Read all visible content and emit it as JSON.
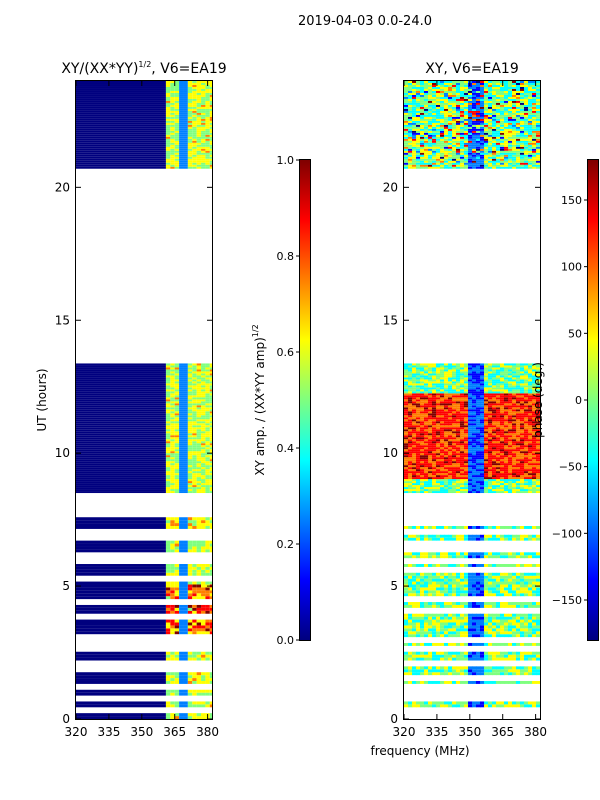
{
  "suptitle": "2019-04-03 0.0-24.0",
  "colors": {
    "jet": [
      "#00007f",
      "#0000ff",
      "#007fff",
      "#00ffff",
      "#7fff7f",
      "#ffff00",
      "#ff7f00",
      "#ff0000",
      "#7f0000"
    ]
  },
  "chart_data": [
    {
      "type": "heatmap",
      "title": "XY/(XX*YY)",
      "title_sup": "1/2",
      "title_suffix": ", V6=EA19",
      "ylabel": "UT (hours)",
      "xlabel": "",
      "xlim": [
        320,
        382
      ],
      "ylim": [
        0,
        24
      ],
      "xticks": [
        "320",
        "335",
        "350",
        "365",
        "380"
      ],
      "xtick_values": [
        320,
        335,
        350,
        365,
        380
      ],
      "yticks": [
        "0",
        "5",
        "10",
        "15",
        "20"
      ],
      "ytick_values": [
        0,
        5,
        10,
        15,
        20
      ],
      "data_blocks": [
        {
          "ut_start": 0.0,
          "ut_end": 7.5,
          "note": "sparse rows"
        },
        {
          "ut_start": 8.5,
          "ut_end": 13.3,
          "note": "dense rows"
        },
        {
          "ut_start": 20.7,
          "ut_end": 24.0,
          "note": "dense rows"
        }
      ],
      "colorbar": {
        "label": "XY amp. / (XX*YY amp)",
        "label_sup": "1/2",
        "range": [
          0.0,
          1.0
        ],
        "ticks": [
          "0.0",
          "0.2",
          "0.4",
          "0.6",
          "0.8",
          "1.0"
        ],
        "tick_values": [
          0.0,
          0.2,
          0.4,
          0.6,
          0.8,
          1.0
        ]
      }
    },
    {
      "type": "heatmap",
      "title": "XY, V6=EA19",
      "ylabel": "",
      "xlabel": "frequency (MHz)",
      "xlim": [
        320,
        382
      ],
      "ylim": [
        0,
        24
      ],
      "xticks": [
        "320",
        "335",
        "350",
        "365",
        "380"
      ],
      "xtick_values": [
        320,
        335,
        350,
        365,
        380
      ],
      "yticks": [
        "0",
        "5",
        "10",
        "15",
        "20"
      ],
      "ytick_values": [
        0,
        5,
        10,
        15,
        20
      ],
      "data_blocks": [
        {
          "ut_start": 0.0,
          "ut_end": 7.5,
          "note": "rows"
        },
        {
          "ut_start": 8.5,
          "ut_end": 13.3,
          "note": "dense rows"
        },
        {
          "ut_start": 20.7,
          "ut_end": 24.0,
          "note": "dense rows"
        }
      ],
      "colorbar": {
        "label": "phase (deg.)",
        "range": [
          -180,
          180
        ],
        "ticks": [
          "−150",
          "−100",
          "−50",
          "0",
          "50",
          "100",
          "150"
        ],
        "tick_values": [
          -150,
          -100,
          -50,
          0,
          50,
          100,
          150
        ]
      }
    }
  ]
}
